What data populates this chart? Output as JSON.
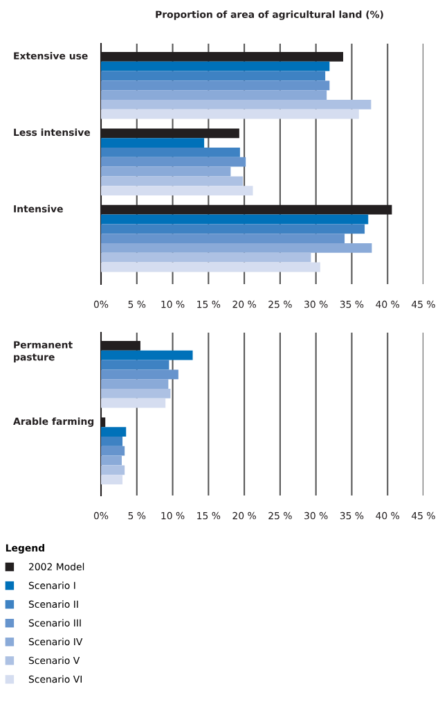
{
  "chart_data": [
    {
      "type": "bar",
      "orientation": "horizontal",
      "title": "Proportion of area of agricultural land (%)",
      "categories": [
        "Extensive use",
        "Less intensive",
        "Intensive"
      ],
      "series": [
        {
          "color": "#231f20",
          "values": [
            33.8,
            19.3,
            40.6
          ]
        },
        {
          "color": "#0071b9",
          "values": [
            31.9,
            14.4,
            37.3
          ]
        },
        {
          "color": "#3e82c3",
          "values": [
            31.3,
            19.4,
            36.8
          ]
        },
        {
          "color": "#6694cd",
          "values": [
            31.9,
            20.2,
            34.0
          ]
        },
        {
          "color": "#8aaad8",
          "values": [
            31.5,
            18.1,
            37.8
          ]
        },
        {
          "color": "#adc1e3",
          "values": [
            37.7,
            19.8,
            29.3
          ]
        },
        {
          "color": "#d5ddf0",
          "values": [
            36.0,
            21.2,
            30.6
          ]
        }
      ],
      "xlim": [
        0,
        45
      ],
      "xticks": [
        {
          "value": 0,
          "label": "0%"
        },
        {
          "value": 5,
          "label": "5 %"
        },
        {
          "value": 10,
          "label": "10 %"
        },
        {
          "value": 15,
          "label": "15 %"
        },
        {
          "value": 20,
          "label": "20 %"
        },
        {
          "value": 25,
          "label": "25 %"
        },
        {
          "value": 30,
          "label": "30 %"
        },
        {
          "value": 35,
          "label": "35 %"
        },
        {
          "value": 40,
          "label": "40 %"
        },
        {
          "value": 45,
          "label": "45 %"
        }
      ],
      "grid": "x"
    },
    {
      "type": "bar",
      "orientation": "horizontal",
      "categories": [
        "Permanent\npasture",
        "Arable farming"
      ],
      "series": [
        {
          "name": "2002 Model",
          "color": "#231f20",
          "values": [
            5.5,
            0.6
          ]
        },
        {
          "name": "Scenario I",
          "color": "#0071b9",
          "values": [
            12.8,
            3.5
          ]
        },
        {
          "name": "Scenario II",
          "color": "#3e82c3",
          "values": [
            9.5,
            3.0
          ]
        },
        {
          "name": "Scenario III",
          "color": "#6694cd",
          "values": [
            10.8,
            3.3
          ]
        },
        {
          "name": "Scenario IV",
          "color": "#8aaad8",
          "values": [
            9.4,
            2.9
          ]
        },
        {
          "name": "Scenario V",
          "color": "#adc1e3",
          "values": [
            9.7,
            3.3
          ]
        },
        {
          "name": "Scenario VI",
          "color": "#d5ddf0",
          "values": [
            9.0,
            3.0
          ]
        }
      ],
      "xlim": [
        0,
        45
      ],
      "xticks": [
        {
          "value": 0,
          "label": "0%"
        },
        {
          "value": 5,
          "label": "5 %"
        },
        {
          "value": 10,
          "label": "10 %"
        },
        {
          "value": 15,
          "label": "15 %"
        },
        {
          "value": 20,
          "label": "20 %"
        },
        {
          "value": 25,
          "label": "25 %"
        },
        {
          "value": 30,
          "label": "30 %"
        },
        {
          "value": 35,
          "label": "35 %"
        },
        {
          "value": 40,
          "label": "40 %"
        },
        {
          "value": 45,
          "label": "45 %"
        }
      ],
      "grid": "x",
      "legend": "bottom left",
      "legend_title": "Legend"
    }
  ]
}
